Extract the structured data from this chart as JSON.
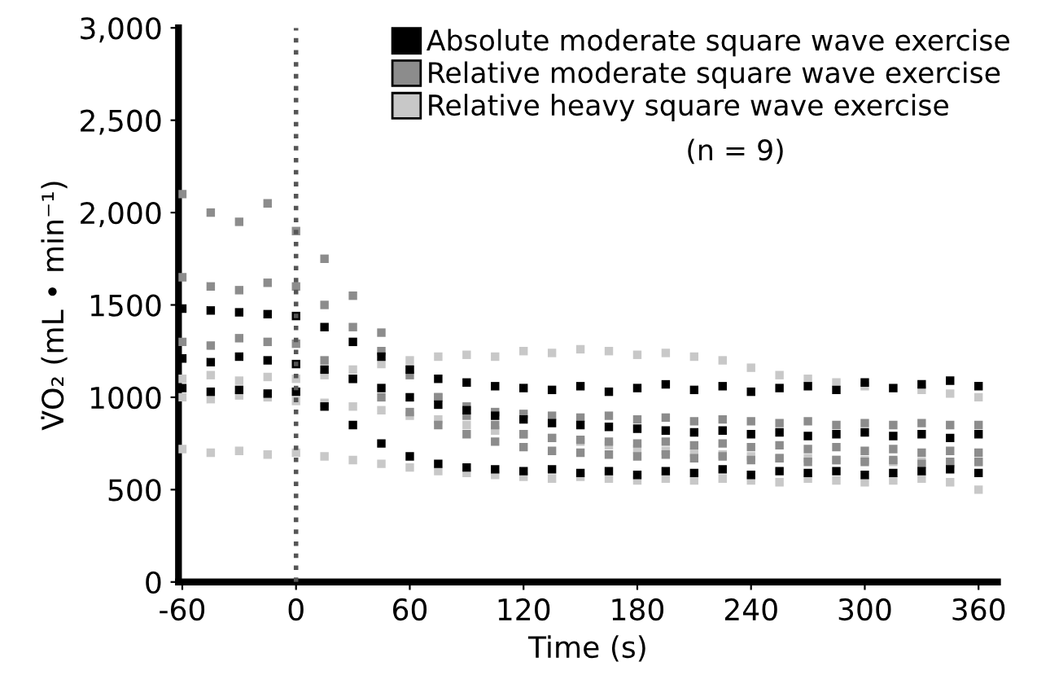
{
  "chart_data": {
    "type": "scatter",
    "xlabel": "Time (s)",
    "ylabel": "V̇O₂ (mL • min⁻¹)",
    "xlim": [
      -62,
      370
    ],
    "xticks": [
      -60,
      0,
      60,
      120,
      180,
      240,
      300,
      360
    ],
    "ylim": [
      0,
      3000
    ],
    "yticks": [
      {
        "value": 0,
        "label": "0"
      },
      {
        "value": 500,
        "label": "500"
      },
      {
        "value": 1000,
        "label": "1000"
      },
      {
        "value": 1500,
        "label": "1500"
      },
      {
        "value": 2000,
        "label": "2,000"
      },
      {
        "value": 2500,
        "label": "2,500"
      },
      {
        "value": 3000,
        "label": "3,000"
      }
    ],
    "grid": false,
    "legend": "top right",
    "marker": "square",
    "annotations": [
      "(n = 9)"
    ],
    "ref_lines": [
      {
        "axis": "x",
        "value": 0,
        "label": null,
        "color": "#555555",
        "line_style": "dotted"
      }
    ],
    "series": [
      {
        "name": "Absolute moderate square wave exercise",
        "color": "#000000",
        "x": [
          -60,
          -45,
          -30,
          -15,
          0,
          15,
          30,
          45,
          60,
          75,
          90,
          105,
          120,
          135,
          150,
          165,
          180,
          195,
          210,
          225,
          240,
          255,
          270,
          285,
          300,
          315,
          330,
          345,
          360,
          -60,
          -45,
          -30,
          -15,
          0,
          15,
          30,
          45,
          60,
          75,
          90,
          105,
          120,
          135,
          150,
          165,
          180,
          195,
          210,
          225,
          240,
          255,
          270,
          285,
          300,
          315,
          330,
          345,
          360,
          -60,
          -45,
          -30,
          -15,
          0,
          15,
          30,
          45,
          60,
          75,
          90,
          105,
          120,
          135,
          150,
          165,
          180,
          195,
          210,
          225,
          240,
          255,
          270,
          285,
          300,
          315,
          330,
          345,
          360
        ],
        "values": [
          1480,
          1470,
          1460,
          1450,
          1440,
          1380,
          1300,
          1220,
          1150,
          1100,
          1080,
          1060,
          1050,
          1040,
          1060,
          1030,
          1050,
          1070,
          1040,
          1060,
          1030,
          1050,
          1060,
          1040,
          1080,
          1050,
          1070,
          1090,
          1060,
          1210,
          1190,
          1220,
          1200,
          1180,
          1150,
          1100,
          1050,
          1000,
          960,
          930,
          900,
          880,
          860,
          850,
          840,
          830,
          820,
          810,
          820,
          800,
          810,
          790,
          800,
          810,
          790,
          800,
          780,
          800,
          1050,
          1030,
          1040,
          1020,
          1030,
          950,
          850,
          750,
          680,
          640,
          620,
          610,
          600,
          610,
          590,
          600,
          580,
          600,
          590,
          610,
          580,
          600,
          590,
          600,
          580,
          590,
          600,
          610,
          590
        ]
      },
      {
        "name": "Relative moderate square wave exercise",
        "color": "#8c8c8c",
        "x": [
          -60,
          -45,
          -30,
          -15,
          0,
          15,
          30,
          45,
          60,
          75,
          90,
          105,
          120,
          135,
          150,
          165,
          180,
          195,
          210,
          225,
          240,
          255,
          270,
          285,
          300,
          315,
          330,
          345,
          360,
          -60,
          -45,
          -30,
          -15,
          0,
          15,
          30,
          45,
          60,
          75,
          90,
          105,
          120,
          135,
          150,
          165,
          180,
          195,
          210,
          225,
          240,
          255,
          270,
          285,
          300,
          315,
          330,
          345,
          360,
          -60,
          -45,
          -30,
          -15,
          0,
          15,
          30,
          45,
          60,
          75,
          90,
          105,
          120,
          135,
          150,
          165,
          180,
          195,
          210,
          225,
          240,
          255,
          270,
          285,
          300,
          315,
          330,
          345,
          360
        ],
        "values": [
          1650,
          1600,
          1580,
          1620,
          1600,
          1500,
          1380,
          1250,
          1120,
          1000,
          950,
          920,
          910,
          900,
          890,
          900,
          880,
          890,
          870,
          880,
          870,
          860,
          870,
          850,
          860,
          850,
          860,
          850,
          850,
          2100,
          2000,
          1950,
          2050,
          1900,
          1750,
          1550,
          1350,
          1150,
          1000,
          900,
          850,
          800,
          780,
          770,
          760,
          750,
          760,
          740,
          750,
          730,
          740,
          720,
          730,
          710,
          720,
          700,
          710,
          700,
          1300,
          1280,
          1320,
          1300,
          1290,
          1200,
          1100,
          1000,
          920,
          850,
          800,
          760,
          730,
          710,
          700,
          690,
          680,
          690,
          670,
          680,
          660,
          670,
          650,
          660,
          650,
          660,
          640,
          650,
          650
        ]
      },
      {
        "name": "Relative heavy square wave exercise",
        "color": "#c8c8c8",
        "x": [
          -60,
          -45,
          -30,
          -15,
          0,
          15,
          30,
          45,
          60,
          75,
          90,
          105,
          120,
          135,
          150,
          165,
          180,
          195,
          210,
          225,
          240,
          255,
          270,
          285,
          300,
          315,
          330,
          345,
          360,
          -60,
          -45,
          -30,
          -15,
          0,
          15,
          30,
          45,
          60,
          75,
          90,
          105,
          120,
          135,
          150,
          165,
          180,
          195,
          210,
          225,
          240,
          255,
          270,
          285,
          300,
          315,
          330,
          345,
          360,
          -60,
          -45,
          -30,
          -15,
          0,
          15,
          30,
          45,
          60,
          75,
          90,
          105,
          120,
          135,
          150,
          165,
          180,
          195,
          210,
          225,
          240,
          255,
          270,
          285,
          300,
          315,
          330,
          345,
          360
        ],
        "values": [
          1000,
          990,
          1010,
          1000,
          980,
          970,
          950,
          930,
          900,
          880,
          850,
          820,
          800,
          780,
          760,
          740,
          720,
          710,
          700,
          690,
          680,
          670,
          670,
          660,
          660,
          650,
          650,
          640,
          650,
          720,
          700,
          710,
          690,
          700,
          680,
          660,
          640,
          620,
          600,
          590,
          580,
          570,
          560,
          570,
          560,
          550,
          560,
          550,
          560,
          550,
          540,
          560,
          550,
          540,
          550,
          560,
          540,
          500,
          1100,
          1120,
          1090,
          1110,
          1100,
          1120,
          1150,
          1180,
          1200,
          1220,
          1230,
          1220,
          1250,
          1240,
          1260,
          1250,
          1230,
          1240,
          1220,
          1200,
          1160,
          1120,
          1100,
          1080,
          1060,
          1050,
          1040,
          1020,
          1000
        ]
      }
    ]
  }
}
